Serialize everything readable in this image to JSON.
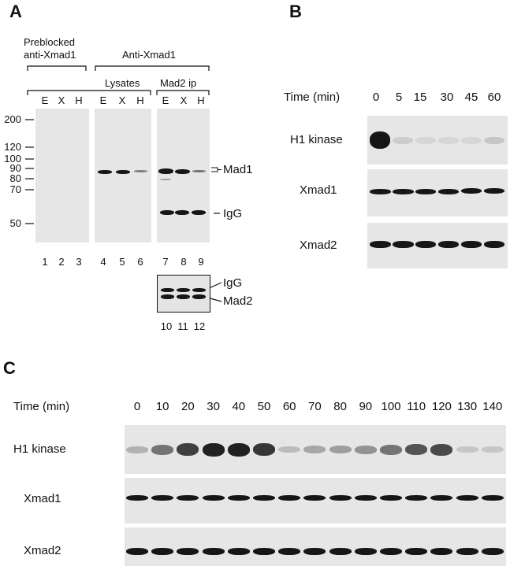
{
  "panel_a": {
    "letter": "A",
    "group_preblocked_line1": "Preblocked",
    "group_preblocked_line2": "anti-Xmad1",
    "group_anti": "Anti-Xmad1",
    "group_lysates": "Lysates",
    "group_mad2ip": "Mad2 ip",
    "lane_letters": [
      "E",
      "X",
      "H",
      "E",
      "X",
      "H",
      "E",
      "X",
      "H"
    ],
    "mw_markers": [
      "200",
      "120",
      "100",
      "90",
      "80",
      "70",
      "50"
    ],
    "band_labels": {
      "mad1": "Mad1",
      "igg": "IgG",
      "igg2": "IgG",
      "mad2": "Mad2"
    },
    "lane_numbers": [
      "1",
      "2",
      "3",
      "4",
      "5",
      "6",
      "7",
      "8",
      "9"
    ],
    "lane_numbers_bottom": [
      "10",
      "11",
      "12"
    ]
  },
  "panel_b": {
    "letter": "B",
    "time_label": "Time (min)",
    "times": [
      "0",
      "5",
      "15",
      "30",
      "45",
      "60"
    ],
    "rows": [
      "H1 kinase",
      "Xmad1",
      "Xmad2"
    ],
    "h1_intensity": [
      1.0,
      0.12,
      0.05,
      0.05,
      0.06,
      0.15
    ]
  },
  "panel_c": {
    "letter": "C",
    "time_label": "Time (min)",
    "times": [
      "0",
      "10",
      "20",
      "30",
      "40",
      "50",
      "60",
      "70",
      "80",
      "90",
      "100",
      "110",
      "120",
      "130",
      "140"
    ],
    "rows": [
      "H1 kinase",
      "Xmad1",
      "Xmad2"
    ],
    "h1_intensity": [
      0.25,
      0.55,
      0.8,
      0.95,
      0.95,
      0.85,
      0.2,
      0.3,
      0.35,
      0.4,
      0.55,
      0.7,
      0.75,
      0.15,
      0.15
    ]
  }
}
